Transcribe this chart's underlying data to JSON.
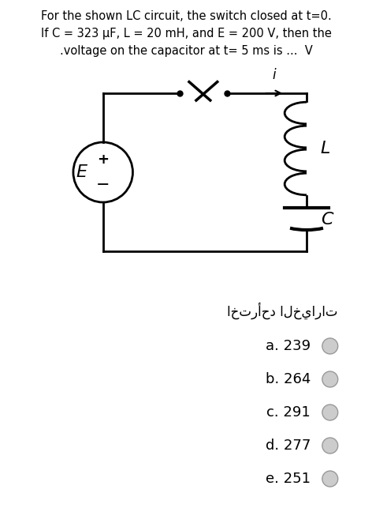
{
  "title_line1": "For the shown LC circuit, the switch closed at t=0.",
  "title_line2": "If C = 323 μF, L = 20 mH, and E = 200 V, then the",
  "title_line3": ".voltage on the capacitor at t= 5 ms is ...  V",
  "arabic_text": "اخترأحد الخيارات",
  "options": [
    "a. 239",
    "b. 264",
    "c. 291",
    "d. 277",
    "e. 251"
  ],
  "bg_color": "#ffffff",
  "text_color": "#000000",
  "circuit_color": "#000000",
  "font_size_title": 10.5,
  "font_size_options": 13
}
